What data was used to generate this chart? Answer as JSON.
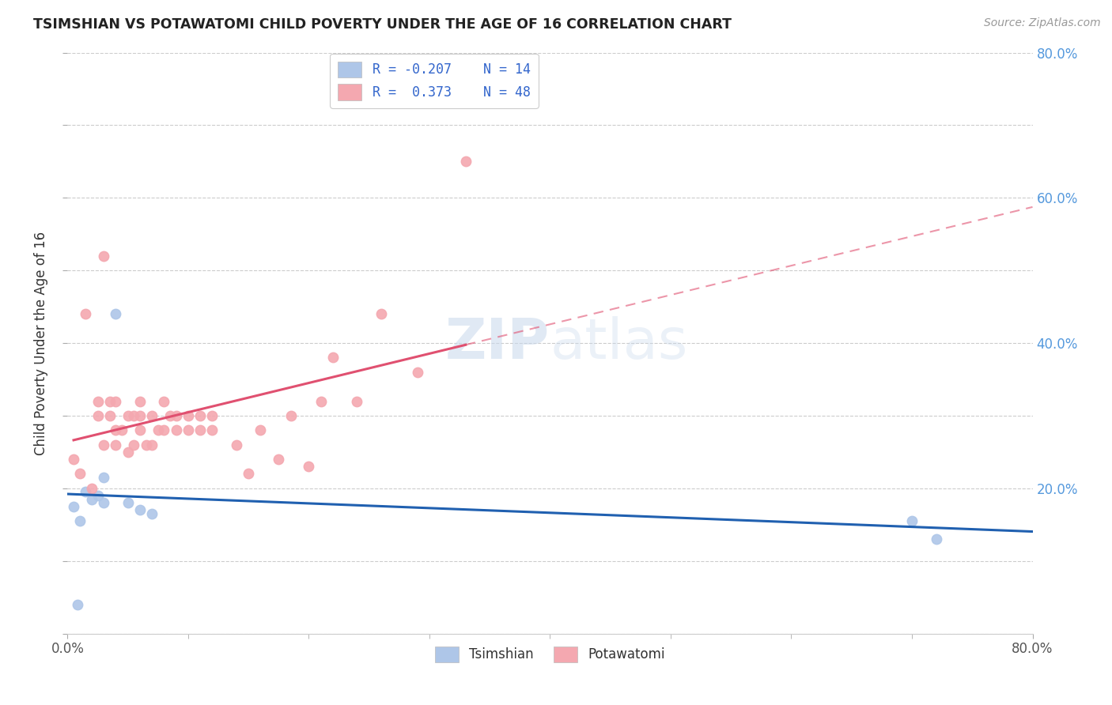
{
  "title": "TSIMSHIAN VS POTAWATOMI CHILD POVERTY UNDER THE AGE OF 16 CORRELATION CHART",
  "source": "Source: ZipAtlas.com",
  "ylabel": "Child Poverty Under the Age of 16",
  "xlabel": "",
  "xlim": [
    0.0,
    0.8
  ],
  "ylim": [
    0.0,
    0.8
  ],
  "background_color": "#ffffff",
  "watermark": "ZIPatlas",
  "tsimshian_color": "#aec6e8",
  "potawatomi_color": "#f4a8b0",
  "tsimshian_line_color": "#2060b0",
  "potawatomi_line_color": "#e05070",
  "R_tsimshian": -0.207,
  "N_tsimshian": 14,
  "R_potawatomi": 0.373,
  "N_potawatomi": 48,
  "tsimshian_x": [
    0.005,
    0.01,
    0.015,
    0.02,
    0.025,
    0.03,
    0.03,
    0.04,
    0.05,
    0.06,
    0.07,
    0.7,
    0.72,
    0.008
  ],
  "tsimshian_y": [
    0.175,
    0.155,
    0.195,
    0.185,
    0.19,
    0.18,
    0.215,
    0.44,
    0.18,
    0.17,
    0.165,
    0.155,
    0.13,
    0.04
  ],
  "potawatomi_x": [
    0.005,
    0.01,
    0.015,
    0.02,
    0.025,
    0.025,
    0.03,
    0.03,
    0.035,
    0.035,
    0.04,
    0.04,
    0.04,
    0.045,
    0.05,
    0.05,
    0.055,
    0.055,
    0.06,
    0.06,
    0.06,
    0.065,
    0.07,
    0.07,
    0.075,
    0.08,
    0.08,
    0.085,
    0.09,
    0.09,
    0.1,
    0.1,
    0.11,
    0.11,
    0.12,
    0.12,
    0.14,
    0.15,
    0.16,
    0.175,
    0.185,
    0.2,
    0.21,
    0.22,
    0.24,
    0.26,
    0.29,
    0.33
  ],
  "potawatomi_y": [
    0.24,
    0.22,
    0.44,
    0.2,
    0.3,
    0.32,
    0.26,
    0.52,
    0.3,
    0.32,
    0.28,
    0.26,
    0.32,
    0.28,
    0.25,
    0.3,
    0.26,
    0.3,
    0.28,
    0.3,
    0.32,
    0.26,
    0.26,
    0.3,
    0.28,
    0.28,
    0.32,
    0.3,
    0.28,
    0.3,
    0.28,
    0.3,
    0.28,
    0.3,
    0.3,
    0.28,
    0.26,
    0.22,
    0.28,
    0.24,
    0.3,
    0.23,
    0.32,
    0.38,
    0.32,
    0.44,
    0.36,
    0.65
  ],
  "xtick_positions": [
    0.0,
    0.8
  ],
  "xtick_labels": [
    "0.0%",
    "80.0%"
  ],
  "yticks_right": [
    0.2,
    0.4,
    0.6,
    0.8
  ],
  "ytick_right_labels": [
    "20.0%",
    "40.0%",
    "60.0%",
    "80.0%"
  ],
  "grid_color": "#cccccc",
  "marker_size": 9,
  "ts_line_xmin": 0.0,
  "ts_line_xmax": 0.8,
  "pot_line_solid_xmax": 0.33,
  "pot_line_dashed_xmax": 0.8
}
